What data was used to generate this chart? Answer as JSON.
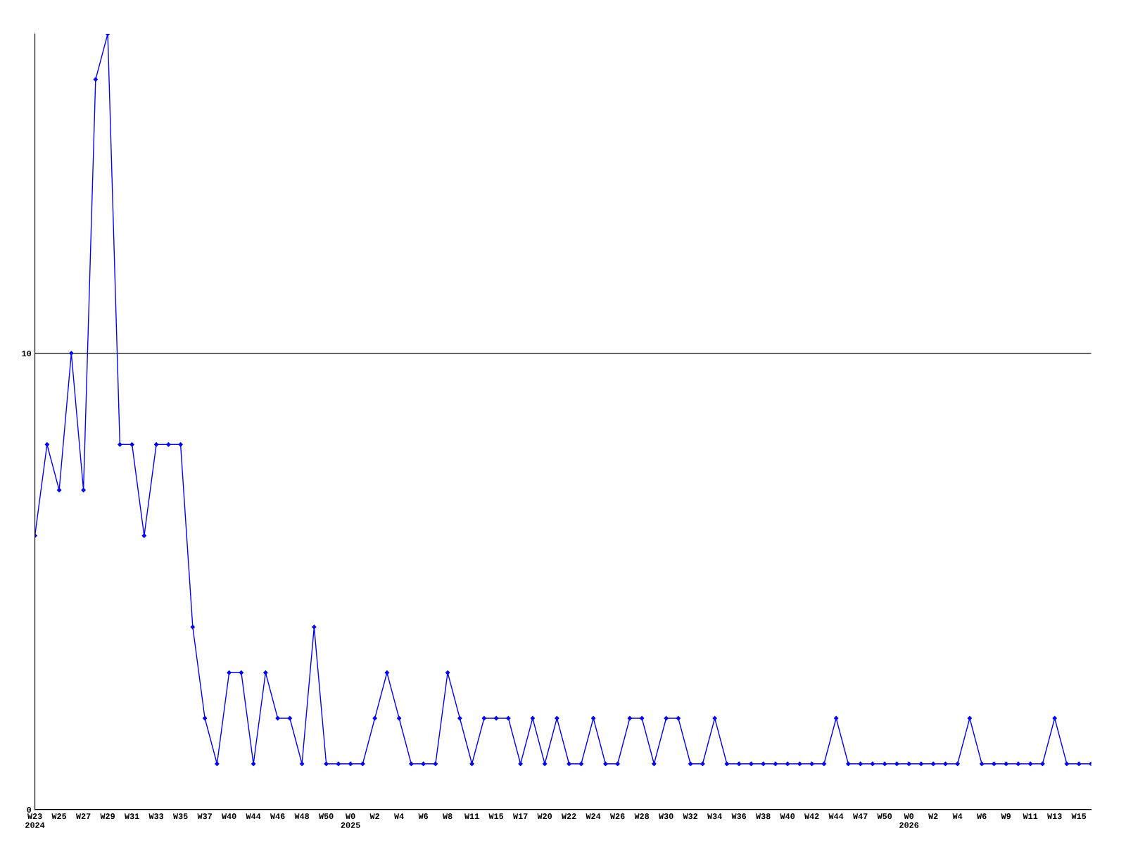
{
  "chart_data": {
    "type": "line",
    "categories": [
      "W23\n2024",
      null,
      "W25",
      null,
      "W27",
      null,
      "W29",
      null,
      "W31",
      null,
      "W33",
      null,
      "W35",
      null,
      "W37",
      null,
      "W40",
      null,
      "W44",
      null,
      "W46",
      null,
      "W48",
      null,
      "W50",
      null,
      "W0\n2025",
      null,
      "W2",
      null,
      "W4",
      null,
      "W6",
      null,
      "W8",
      null,
      "W11",
      null,
      "W15",
      null,
      "W17",
      null,
      "W20",
      null,
      "W22",
      null,
      "W24",
      null,
      "W26",
      null,
      "W28",
      null,
      "W30",
      null,
      "W32",
      null,
      "W34",
      null,
      "W36",
      null,
      "W38",
      null,
      "W40",
      null,
      "W42",
      null,
      "W44",
      null,
      "W47",
      null,
      "W50",
      null,
      "W0\n2026",
      null,
      "W2",
      null,
      "W4",
      null,
      "W6",
      null,
      "W9",
      null,
      "W11",
      null,
      "W13",
      null,
      "W15",
      null
    ],
    "series": [
      {
        "color": "#0000ff",
        "values": [
          6,
          8,
          7,
          10,
          7,
          16,
          17,
          8,
          8,
          6,
          8,
          8,
          8,
          4,
          2,
          1,
          3,
          3,
          1,
          3,
          2,
          2,
          1,
          4,
          1,
          1,
          1,
          1,
          2,
          3,
          2,
          1,
          1,
          1,
          3,
          2,
          1,
          2,
          2,
          2,
          1,
          2,
          1,
          2,
          1,
          1,
          2,
          1,
          1,
          2,
          2,
          1,
          2,
          2,
          1,
          1,
          2,
          1,
          1,
          1,
          1,
          1,
          1,
          1,
          1,
          1,
          2,
          1,
          1,
          1,
          1,
          1,
          1,
          1,
          1,
          1,
          1,
          2,
          1,
          1,
          1,
          1,
          1,
          1,
          2,
          1,
          1,
          1
        ]
      }
    ],
    "ylim": [
      0,
      17
    ],
    "yticks": [
      0,
      10
    ],
    "grid": "y",
    "marker": "diamond",
    "line_style": "solid"
  }
}
